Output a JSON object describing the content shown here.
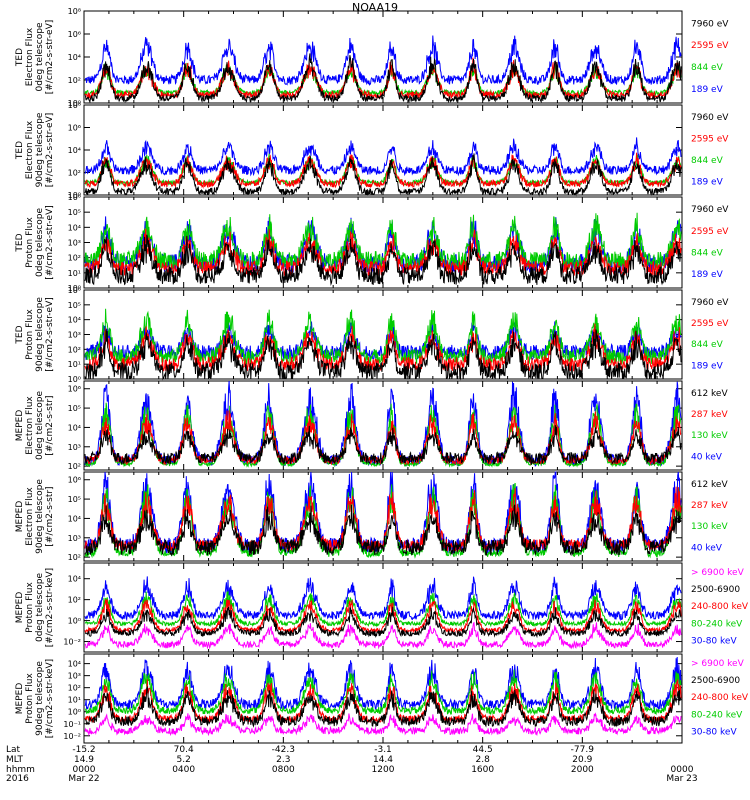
{
  "title": "NOAA19",
  "colors": {
    "black": "#000000",
    "blue": "#0000ff",
    "red": "#ff0000",
    "green": "#00cc00",
    "magenta": "#ff00ff"
  },
  "chart_data": [
    {
      "type": "line",
      "ylabel": [
        "TED",
        "Electron Flux",
        "0deg telescope",
        "[#/cm2-s-str-eV]"
      ],
      "ylog": true,
      "yticks": [
        "10⁰",
        "10²",
        "10⁴",
        "10⁶",
        "10⁸"
      ],
      "yticks_exp": [
        0,
        2,
        4,
        6,
        8
      ],
      "ylim_exp": [
        0,
        8
      ],
      "series": [
        {
          "name": "7960 eV",
          "color": "#000000",
          "base": 0.4,
          "spread": 0.3,
          "peak": 3.2
        },
        {
          "name": "2595 eV",
          "color": "#ff0000",
          "base": 0.7,
          "spread": 0.3,
          "peak": 3.0
        },
        {
          "name": "844 eV",
          "color": "#00cc00",
          "base": 0.9,
          "spread": 0.2,
          "peak": 2.8
        },
        {
          "name": "189 eV",
          "color": "#0000ff",
          "base": 2.0,
          "spread": 0.4,
          "peak": 4.8
        }
      ]
    },
    {
      "type": "line",
      "ylabel": [
        "TED",
        "Electron Flux",
        "90deg telescope",
        "[#/cm2-s-str-eV]"
      ],
      "ylog": true,
      "yticks": [
        "10⁰",
        "10²",
        "10⁴",
        "10⁶",
        "10⁸"
      ],
      "yticks_exp": [
        0,
        2,
        4,
        6,
        8
      ],
      "ylim_exp": [
        0,
        8
      ],
      "series": [
        {
          "name": "7960 eV",
          "color": "#000000",
          "base": 0.3,
          "spread": 0.3,
          "peak": 2.8
        },
        {
          "name": "2595 eV",
          "color": "#ff0000",
          "base": 1.0,
          "spread": 0.3,
          "peak": 3.0
        },
        {
          "name": "844 eV",
          "color": "#00cc00",
          "base": 1.1,
          "spread": 0.2,
          "peak": 3.0
        },
        {
          "name": "189 eV",
          "color": "#0000ff",
          "base": 2.2,
          "spread": 0.4,
          "peak": 4.2
        }
      ]
    },
    {
      "type": "line",
      "ylabel": [
        "TED",
        "Proton Flux",
        "0deg telescope",
        "[#/cm2-s-str-eV]"
      ],
      "ylog": true,
      "yticks": [
        "10⁰",
        "10¹",
        "10²",
        "10³",
        "10⁴",
        "10⁵",
        "10⁶"
      ],
      "yticks_exp": [
        0,
        1,
        2,
        3,
        4,
        5,
        6
      ],
      "ylim_exp": [
        0,
        6
      ],
      "series": [
        {
          "name": "7960 eV",
          "color": "#000000",
          "base": 0.8,
          "spread": 0.6,
          "peak": 2.6
        },
        {
          "name": "2595 eV",
          "color": "#ff0000",
          "base": 1.3,
          "spread": 0.5,
          "peak": 3.0
        },
        {
          "name": "844 eV",
          "color": "#00cc00",
          "base": 1.8,
          "spread": 0.6,
          "peak": 4.0
        },
        {
          "name": "189 eV",
          "color": "#0000ff",
          "base": 1.6,
          "spread": 0.6,
          "peak": 3.8
        }
      ]
    },
    {
      "type": "line",
      "ylabel": [
        "TED",
        "Proton Flux",
        "90deg telescope",
        "[#/cm2-s-str-eV]"
      ],
      "ylog": true,
      "yticks": [
        "10⁰",
        "10¹",
        "10²",
        "10³",
        "10⁴",
        "10⁵",
        "10⁶"
      ],
      "yticks_exp": [
        0,
        1,
        2,
        3,
        4,
        5,
        6
      ],
      "ylim_exp": [
        0,
        6
      ],
      "series": [
        {
          "name": "7960 eV",
          "color": "#000000",
          "base": 0.5,
          "spread": 0.6,
          "peak": 2.4
        },
        {
          "name": "2595 eV",
          "color": "#ff0000",
          "base": 1.0,
          "spread": 0.5,
          "peak": 2.8
        },
        {
          "name": "844 eV",
          "color": "#00cc00",
          "base": 1.5,
          "spread": 0.5,
          "peak": 3.8
        },
        {
          "name": "189 eV",
          "color": "#0000ff",
          "base": 1.8,
          "spread": 0.5,
          "peak": 3.2
        }
      ]
    },
    {
      "type": "line",
      "ylabel": [
        "MEPED",
        "Electron Flux",
        "0deg telescope",
        "[#/cm2-s-str]"
      ],
      "ylog": true,
      "yticks": [
        "10²",
        "10³",
        "10⁴",
        "10⁵",
        "10⁶"
      ],
      "yticks_exp": [
        2,
        3,
        4,
        5,
        6
      ],
      "ylim_exp": [
        1.8,
        6.4
      ],
      "series": [
        {
          "name": "612 keV",
          "color": "#000000",
          "base": 2.4,
          "spread": 0.3,
          "peak": 3.6
        },
        {
          "name": "287 keV",
          "color": "#ff0000",
          "base": 2.3,
          "spread": 0.2,
          "peak": 4.2
        },
        {
          "name": "130 keV",
          "color": "#00cc00",
          "base": 2.1,
          "spread": 0.1,
          "peak": 4.6
        },
        {
          "name": "40 keV",
          "color": "#0000ff",
          "base": 2.3,
          "spread": 0.3,
          "peak": 5.4
        }
      ]
    },
    {
      "type": "line",
      "ylabel": [
        "MEPED",
        "Electron Flux",
        "90deg telescope",
        "[#/cm2-s-str]"
      ],
      "ylog": true,
      "yticks": [
        "10²",
        "10³",
        "10⁴",
        "10⁵",
        "10⁶"
      ],
      "yticks_exp": [
        2,
        3,
        4,
        5,
        6
      ],
      "ylim_exp": [
        1.8,
        6.4
      ],
      "series": [
        {
          "name": "612 keV",
          "color": "#000000",
          "base": 2.5,
          "spread": 0.4,
          "peak": 4.0
        },
        {
          "name": "287 keV",
          "color": "#ff0000",
          "base": 2.6,
          "spread": 0.3,
          "peak": 4.8
        },
        {
          "name": "130 keV",
          "color": "#00cc00",
          "base": 2.2,
          "spread": 0.2,
          "peak": 5.0
        },
        {
          "name": "40 keV",
          "color": "#0000ff",
          "base": 2.6,
          "spread": 0.4,
          "peak": 5.6
        }
      ]
    },
    {
      "type": "line",
      "ylabel": [
        "MEPED",
        "Proton Flux",
        "0deg telescope",
        "[#/cm2-s-str-keV]"
      ],
      "ylog": true,
      "yticks": [
        "10⁻²",
        "10⁰",
        "10²",
        "10⁴"
      ],
      "yticks_exp": [
        -2,
        0,
        2,
        4
      ],
      "ylim_exp": [
        -3,
        5.5
      ],
      "series": [
        {
          "name": "> 6900 keV",
          "color": "#ff00ff",
          "base": -2.3,
          "spread": 0.3,
          "peak": -0.8
        },
        {
          "name": "2500-6900",
          "color": "#000000",
          "base": -1.2,
          "spread": 0.3,
          "peak": 0.6
        },
        {
          "name": "240-800 keV",
          "color": "#ff0000",
          "base": -0.9,
          "spread": 0.2,
          "peak": 1.4
        },
        {
          "name": "80-240 keV",
          "color": "#00cc00",
          "base": -0.3,
          "spread": 0.2,
          "peak": 2.0
        },
        {
          "name": "30-80 keV",
          "color": "#0000ff",
          "base": 0.5,
          "spread": 0.4,
          "peak": 3.2
        }
      ]
    },
    {
      "type": "line",
      "ylabel": [
        "MEPED",
        "Proton Flux",
        "90deg telescope",
        "[#/cm2-s-str-keV]"
      ],
      "ylog": true,
      "yticks": [
        "10⁻²",
        "10⁻¹",
        "10⁰",
        "10¹",
        "10²",
        "10³",
        "10⁴"
      ],
      "yticks_exp": [
        -2,
        -1,
        0,
        1,
        2,
        3,
        4
      ],
      "ylim_exp": [
        -2.6,
        4.8
      ],
      "series": [
        {
          "name": "> 6900 keV",
          "color": "#ff00ff",
          "base": -1.6,
          "spread": 0.3,
          "peak": -0.6
        },
        {
          "name": "2500-6900",
          "color": "#000000",
          "base": -0.8,
          "spread": 0.4,
          "peak": 1.2
        },
        {
          "name": "240-800 keV",
          "color": "#ff0000",
          "base": -0.6,
          "spread": 0.3,
          "peak": 1.8
        },
        {
          "name": "80-240 keV",
          "color": "#00cc00",
          "base": 0.1,
          "spread": 0.3,
          "peak": 2.6
        },
        {
          "name": "30-80 keV",
          "color": "#0000ff",
          "base": 0.6,
          "spread": 0.4,
          "peak": 3.4
        }
      ]
    }
  ],
  "footer": {
    "row_labels": [
      "Lat",
      "MLT",
      "hhmm",
      "2016"
    ],
    "columns": [
      {
        "lat": "-15.2",
        "mlt": "14.9",
        "hhmm": "0000",
        "date": "Mar 22"
      },
      {
        "lat": "70.4",
        "mlt": "5.2",
        "hhmm": "0400",
        "date": ""
      },
      {
        "lat": "-42.3",
        "mlt": "2.3",
        "hhmm": "0800",
        "date": ""
      },
      {
        "lat": "-3.1",
        "mlt": "14.4",
        "hhmm": "1200",
        "date": ""
      },
      {
        "lat": "44.5",
        "mlt": "2.8",
        "hhmm": "1600",
        "date": ""
      },
      {
        "lat": "-77.9",
        "mlt": "20.9",
        "hhmm": "2000",
        "date": ""
      },
      {
        "lat": "",
        "mlt": "",
        "hhmm": "0000",
        "date": "Mar 23"
      }
    ]
  }
}
